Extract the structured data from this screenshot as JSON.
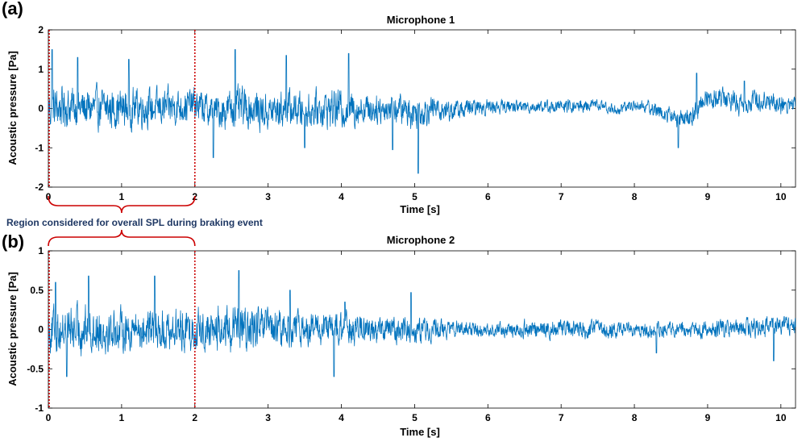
{
  "annotation": {
    "text": "Region considered for overall SPL during braking event",
    "color": "#1f3864",
    "region_x": [
      0,
      2
    ],
    "bracket_color": "#cc0000"
  },
  "chart_data": [
    {
      "type": "line",
      "panel_label": "(a)",
      "title": "Microphone 1",
      "xlabel": "Time [s]",
      "ylabel": "Acoustic pressure [Pa]",
      "xlim": [
        0,
        10.2
      ],
      "ylim": [
        -2,
        2
      ],
      "xticks": [
        0,
        1,
        2,
        3,
        4,
        5,
        6,
        7,
        8,
        9,
        10
      ],
      "yticks": [
        -2,
        -1,
        0,
        1,
        2
      ],
      "grid": false,
      "line_color": "#0072bd",
      "vlines": [
        {
          "x": 0,
          "color": "#cc0000",
          "style": "dotted"
        },
        {
          "x": 2,
          "color": "#cc0000",
          "style": "dotted"
        }
      ],
      "series": [
        {
          "x": [
            0,
            0.25,
            0.5,
            0.75,
            1,
            1.25,
            1.5,
            1.75,
            2,
            2.25,
            2.5,
            2.75,
            3,
            3.25,
            3.5,
            3.75,
            4,
            4.25,
            4.5,
            4.75,
            5,
            5.25,
            5.5,
            5.75,
            6,
            6.25,
            6.5,
            6.75,
            7,
            7.25,
            7.5,
            7.75,
            8,
            8.25,
            8.5,
            8.75,
            9,
            9.25,
            9.5,
            9.75,
            10,
            10.2
          ],
          "amplitude": [
            0.6,
            0.55,
            0.55,
            0.55,
            0.55,
            0.55,
            0.5,
            0.5,
            0.45,
            0.45,
            0.55,
            0.55,
            0.5,
            0.5,
            0.5,
            0.5,
            0.55,
            0.45,
            0.4,
            0.4,
            0.45,
            0.35,
            0.3,
            0.25,
            0.2,
            0.18,
            0.17,
            0.17,
            0.18,
            0.18,
            0.15,
            0.15,
            0.15,
            0.2,
            0.25,
            0.25,
            0.3,
            0.3,
            0.3,
            0.3,
            0.28,
            0.25
          ],
          "trend": [
            0,
            0.05,
            0,
            0,
            0,
            0.05,
            0,
            0.05,
            0.1,
            -0.1,
            0,
            0,
            -0.1,
            0,
            -0.05,
            0,
            0,
            0,
            0,
            0,
            -0.1,
            0,
            -0.05,
            0,
            0.05,
            0.05,
            0.05,
            0.05,
            0.05,
            0.05,
            0.1,
            -0.05,
            0.1,
            0,
            -0.2,
            -0.3,
            0.3,
            0.25,
            0.1,
            0.25,
            0.1,
            0.1
          ],
          "peaks": [
            {
              "x": 0.05,
              "y": 1.5
            },
            {
              "x": 0.4,
              "y": 1.3
            },
            {
              "x": 1.1,
              "y": 1.25
            },
            {
              "x": 2.25,
              "y": -1.25
            },
            {
              "x": 2.55,
              "y": 1.5
            },
            {
              "x": 3.25,
              "y": 1.35
            },
            {
              "x": 3.5,
              "y": -1.0
            },
            {
              "x": 4.1,
              "y": 1.4
            },
            {
              "x": 4.7,
              "y": -1.05
            },
            {
              "x": 5.05,
              "y": -1.65
            },
            {
              "x": 8.6,
              "y": -1.0
            },
            {
              "x": 8.85,
              "y": 0.9
            },
            {
              "x": 9.5,
              "y": 0.7
            }
          ]
        }
      ]
    },
    {
      "type": "line",
      "panel_label": "(b)",
      "title": "Microphone 2",
      "xlabel": "Time [s]",
      "ylabel": "Acoustic pressure [Pa]",
      "xlim": [
        0,
        10.2
      ],
      "ylim": [
        -1,
        1
      ],
      "xticks": [
        0,
        1,
        2,
        3,
        4,
        5,
        6,
        7,
        8,
        9,
        10
      ],
      "yticks": [
        -1,
        -0.5,
        0,
        0.5,
        1
      ],
      "grid": false,
      "line_color": "#0072bd",
      "vlines": [
        {
          "x": 0,
          "color": "#cc0000",
          "style": "dotted"
        },
        {
          "x": 2,
          "color": "#cc0000",
          "style": "dotted"
        }
      ],
      "series": [
        {
          "x": [
            0,
            0.25,
            0.5,
            0.75,
            1,
            1.25,
            1.5,
            1.75,
            2,
            2.25,
            2.5,
            2.75,
            3,
            3.25,
            3.5,
            3.75,
            4,
            4.25,
            4.5,
            4.75,
            5,
            5.25,
            5.5,
            5.75,
            6,
            6.25,
            6.5,
            6.75,
            7,
            7.25,
            7.5,
            7.75,
            8,
            8.25,
            8.5,
            8.75,
            9,
            9.25,
            9.5,
            9.75,
            10,
            10.2
          ],
          "amplitude": [
            0.3,
            0.32,
            0.32,
            0.3,
            0.28,
            0.3,
            0.3,
            0.28,
            0.28,
            0.3,
            0.3,
            0.3,
            0.28,
            0.25,
            0.22,
            0.22,
            0.25,
            0.2,
            0.18,
            0.17,
            0.18,
            0.15,
            0.12,
            0.1,
            0.09,
            0.1,
            0.12,
            0.12,
            0.13,
            0.12,
            0.12,
            0.11,
            0.1,
            0.11,
            0.1,
            0.1,
            0.11,
            0.12,
            0.13,
            0.13,
            0.13,
            0.12
          ],
          "trend": [
            0,
            0,
            0,
            0,
            0,
            0,
            0,
            0,
            0,
            0,
            0,
            0,
            0,
            0,
            0,
            0,
            0,
            0,
            0,
            0,
            0,
            0,
            0,
            0,
            0,
            0,
            0,
            0,
            0.02,
            0,
            0,
            0,
            0,
            0,
            0,
            0,
            0,
            0,
            0.02,
            0.02,
            0.05,
            0.05
          ],
          "peaks": [
            {
              "x": 0.1,
              "y": 0.6
            },
            {
              "x": 0.55,
              "y": 0.68
            },
            {
              "x": 1.45,
              "y": 0.68
            },
            {
              "x": 0.25,
              "y": -0.6
            },
            {
              "x": 2.6,
              "y": 0.75
            },
            {
              "x": 3.3,
              "y": 0.5
            },
            {
              "x": 3.9,
              "y": -0.6
            },
            {
              "x": 4.05,
              "y": 0.35
            },
            {
              "x": 4.95,
              "y": 0.47
            },
            {
              "x": 8.3,
              "y": -0.3
            },
            {
              "x": 9.9,
              "y": -0.4
            }
          ]
        }
      ]
    }
  ]
}
